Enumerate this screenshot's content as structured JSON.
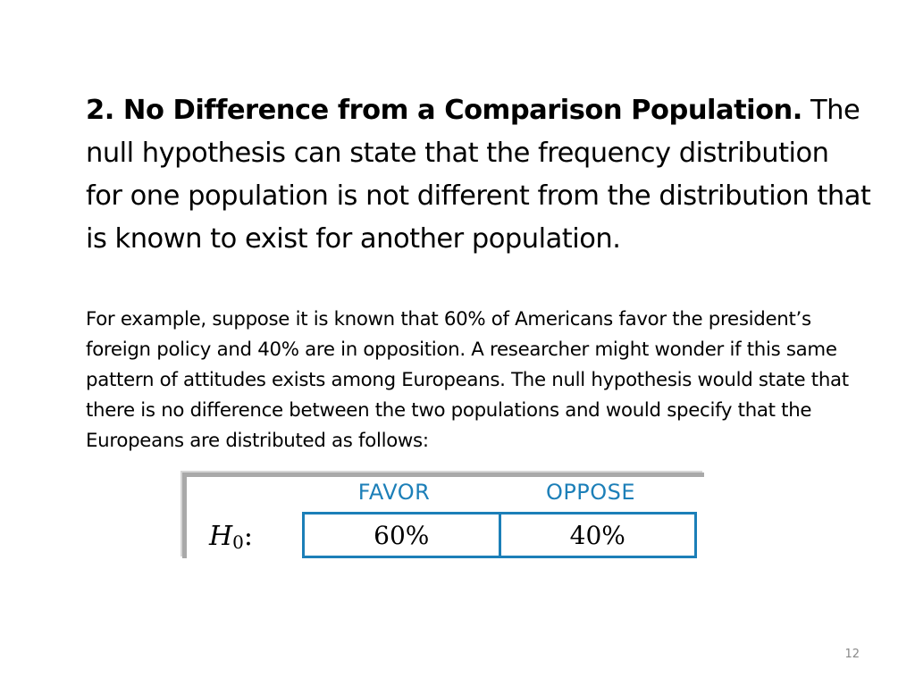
{
  "slide": {
    "heading_bold": "2. No Difference from a Comparison Population.",
    "heading_rest": " The null hypothesis can state that the frequency distribution for one population is not different from the distribution that is known to exist for another population.",
    "example_text": "For example, suppose it is known that 60% of Americans favor the president’s foreign policy and 40% are in opposition. A researcher might wonder if this same pattern of attitudes exists among Europeans. The null hypothesis would state that there is no difference between the two populations and would specify that the Europeans are distributed as follows:",
    "page_number": "12"
  },
  "figure": {
    "columns": [
      "FAVOR",
      "OPPOSE"
    ],
    "h0_symbol": "H",
    "h0_subscript": "0",
    "h0_colon": ":",
    "values": [
      "60%",
      "40%"
    ],
    "accent_color": "#1c7fb8"
  }
}
